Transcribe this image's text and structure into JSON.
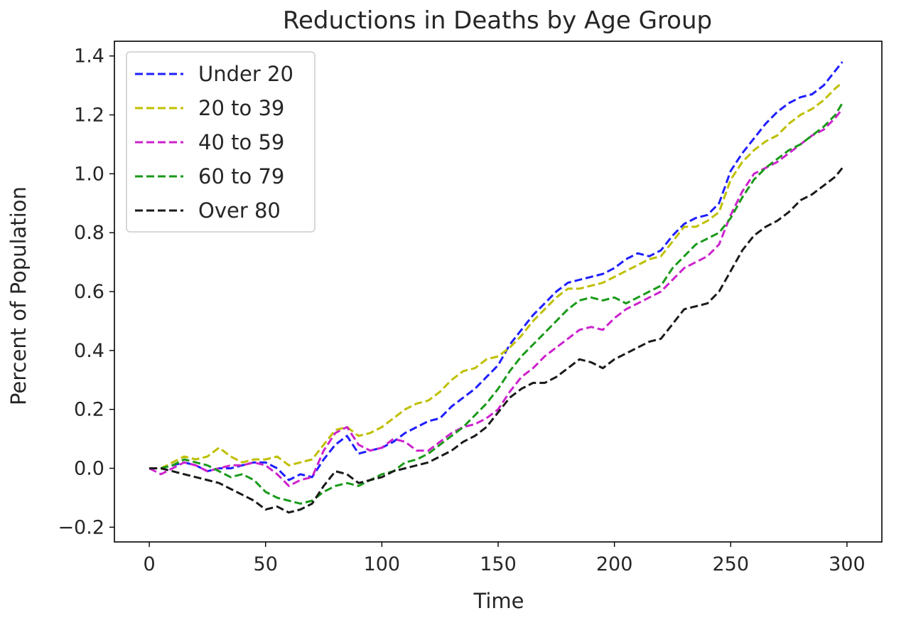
{
  "chart_data": {
    "type": "line",
    "title": "Reductions in Deaths by Age Group",
    "xlabel": "Time",
    "ylabel": "Percent of Population",
    "xlim": [
      -15,
      315
    ],
    "ylim": [
      -0.25,
      1.45
    ],
    "xticks": [
      0,
      50,
      100,
      150,
      200,
      250,
      300
    ],
    "yticks": [
      -0.2,
      0.0,
      0.2,
      0.4,
      0.6,
      0.8,
      1.0,
      1.2,
      1.4
    ],
    "xtick_labels": [
      "0",
      "50",
      "100",
      "150",
      "200",
      "250",
      "300"
    ],
    "ytick_labels": [
      "−0.2",
      "0.0",
      "0.2",
      "0.4",
      "0.6",
      "0.8",
      "1.0",
      "1.2",
      "1.4"
    ],
    "grid": false,
    "legend_position": "upper-left",
    "line_style": "dashed",
    "series": [
      {
        "name": "Under 20",
        "color": "#1f1fff",
        "x": [
          0,
          5,
          10,
          15,
          20,
          25,
          30,
          35,
          40,
          45,
          50,
          55,
          60,
          65,
          70,
          75,
          80,
          85,
          90,
          95,
          100,
          105,
          110,
          115,
          120,
          125,
          130,
          135,
          140,
          145,
          150,
          155,
          160,
          165,
          170,
          175,
          180,
          185,
          190,
          195,
          200,
          205,
          210,
          215,
          220,
          225,
          230,
          235,
          240,
          245,
          250,
          255,
          260,
          265,
          270,
          275,
          280,
          285,
          290,
          295,
          298
        ],
        "y": [
          0.0,
          0.0,
          0.01,
          0.02,
          0.01,
          -0.01,
          0.0,
          0.0,
          0.01,
          0.02,
          0.02,
          0.0,
          -0.04,
          -0.02,
          -0.03,
          0.03,
          0.08,
          0.11,
          0.05,
          0.06,
          0.07,
          0.09,
          0.12,
          0.14,
          0.16,
          0.17,
          0.21,
          0.24,
          0.27,
          0.31,
          0.35,
          0.42,
          0.47,
          0.52,
          0.56,
          0.6,
          0.63,
          0.64,
          0.65,
          0.66,
          0.68,
          0.71,
          0.73,
          0.72,
          0.74,
          0.79,
          0.83,
          0.85,
          0.86,
          0.9,
          1.01,
          1.07,
          1.12,
          1.17,
          1.21,
          1.24,
          1.26,
          1.27,
          1.3,
          1.35,
          1.38
        ]
      },
      {
        "name": "20 to 39",
        "color": "#bfbf00",
        "x": [
          0,
          5,
          10,
          15,
          20,
          25,
          30,
          35,
          40,
          45,
          50,
          55,
          60,
          65,
          70,
          75,
          80,
          85,
          90,
          95,
          100,
          105,
          110,
          115,
          120,
          125,
          130,
          135,
          140,
          145,
          150,
          155,
          160,
          165,
          170,
          175,
          180,
          185,
          190,
          195,
          200,
          205,
          210,
          215,
          220,
          225,
          230,
          235,
          240,
          245,
          250,
          255,
          260,
          265,
          270,
          275,
          280,
          285,
          290,
          295,
          298
        ],
        "y": [
          0.0,
          0.0,
          0.02,
          0.04,
          0.03,
          0.04,
          0.07,
          0.04,
          0.02,
          0.03,
          0.03,
          0.04,
          0.01,
          0.02,
          0.03,
          0.08,
          0.13,
          0.14,
          0.11,
          0.12,
          0.14,
          0.17,
          0.2,
          0.22,
          0.23,
          0.26,
          0.3,
          0.33,
          0.34,
          0.37,
          0.38,
          0.41,
          0.45,
          0.5,
          0.54,
          0.58,
          0.61,
          0.61,
          0.62,
          0.63,
          0.65,
          0.67,
          0.69,
          0.71,
          0.72,
          0.77,
          0.82,
          0.82,
          0.84,
          0.87,
          0.98,
          1.04,
          1.08,
          1.11,
          1.13,
          1.17,
          1.2,
          1.22,
          1.25,
          1.29,
          1.31
        ]
      },
      {
        "name": "40 to 59",
        "color": "#cc22cc",
        "x": [
          0,
          5,
          10,
          15,
          20,
          25,
          30,
          35,
          40,
          45,
          50,
          55,
          60,
          65,
          70,
          75,
          80,
          85,
          90,
          95,
          100,
          105,
          110,
          115,
          120,
          125,
          130,
          135,
          140,
          145,
          150,
          155,
          160,
          165,
          170,
          175,
          180,
          185,
          190,
          195,
          200,
          205,
          210,
          215,
          220,
          225,
          230,
          235,
          240,
          245,
          250,
          255,
          260,
          265,
          270,
          275,
          280,
          285,
          290,
          295,
          298
        ],
        "y": [
          0.0,
          -0.02,
          0.0,
          0.02,
          0.01,
          -0.01,
          0.0,
          0.01,
          0.01,
          0.02,
          0.01,
          -0.02,
          -0.06,
          -0.04,
          -0.03,
          0.06,
          0.12,
          0.14,
          0.08,
          0.06,
          0.07,
          0.1,
          0.09,
          0.06,
          0.06,
          0.09,
          0.12,
          0.14,
          0.15,
          0.17,
          0.2,
          0.26,
          0.31,
          0.34,
          0.38,
          0.41,
          0.44,
          0.47,
          0.48,
          0.47,
          0.51,
          0.54,
          0.56,
          0.58,
          0.6,
          0.64,
          0.68,
          0.7,
          0.72,
          0.76,
          0.86,
          0.94,
          1.0,
          1.02,
          1.04,
          1.07,
          1.1,
          1.13,
          1.15,
          1.19,
          1.22
        ]
      },
      {
        "name": "60 to 79",
        "color": "#1a9a1a",
        "x": [
          0,
          5,
          10,
          15,
          20,
          25,
          30,
          35,
          40,
          45,
          50,
          55,
          60,
          65,
          70,
          75,
          80,
          85,
          90,
          95,
          100,
          105,
          110,
          115,
          120,
          125,
          130,
          135,
          140,
          145,
          150,
          155,
          160,
          165,
          170,
          175,
          180,
          185,
          190,
          195,
          200,
          205,
          210,
          215,
          220,
          225,
          230,
          235,
          240,
          245,
          250,
          255,
          260,
          265,
          270,
          275,
          280,
          285,
          290,
          295,
          298
        ],
        "y": [
          0.0,
          0.0,
          0.01,
          0.03,
          0.02,
          0.01,
          -0.01,
          -0.03,
          -0.02,
          -0.04,
          -0.08,
          -0.1,
          -0.11,
          -0.12,
          -0.11,
          -0.08,
          -0.06,
          -0.05,
          -0.06,
          -0.04,
          -0.02,
          -0.01,
          0.02,
          0.03,
          0.05,
          0.08,
          0.11,
          0.14,
          0.18,
          0.22,
          0.27,
          0.33,
          0.38,
          0.42,
          0.46,
          0.5,
          0.54,
          0.57,
          0.58,
          0.57,
          0.58,
          0.56,
          0.58,
          0.6,
          0.62,
          0.68,
          0.72,
          0.76,
          0.78,
          0.8,
          0.85,
          0.92,
          0.98,
          1.02,
          1.05,
          1.08,
          1.1,
          1.13,
          1.16,
          1.2,
          1.24
        ]
      },
      {
        "name": "Over 80",
        "color": "#1a1a1a",
        "x": [
          0,
          5,
          10,
          15,
          20,
          25,
          30,
          35,
          40,
          45,
          50,
          55,
          60,
          65,
          70,
          75,
          80,
          85,
          90,
          95,
          100,
          105,
          110,
          115,
          120,
          125,
          130,
          135,
          140,
          145,
          150,
          155,
          160,
          165,
          170,
          175,
          180,
          185,
          190,
          195,
          200,
          205,
          210,
          215,
          220,
          225,
          230,
          235,
          240,
          245,
          250,
          255,
          260,
          265,
          270,
          275,
          280,
          285,
          290,
          295,
          298
        ],
        "y": [
          0.0,
          0.0,
          -0.01,
          -0.02,
          -0.03,
          -0.04,
          -0.05,
          -0.07,
          -0.09,
          -0.11,
          -0.14,
          -0.13,
          -0.15,
          -0.14,
          -0.12,
          -0.06,
          -0.01,
          -0.02,
          -0.05,
          -0.04,
          -0.03,
          -0.01,
          0.0,
          0.01,
          0.02,
          0.04,
          0.06,
          0.09,
          0.11,
          0.14,
          0.19,
          0.24,
          0.27,
          0.29,
          0.29,
          0.31,
          0.34,
          0.37,
          0.36,
          0.34,
          0.37,
          0.39,
          0.41,
          0.43,
          0.44,
          0.49,
          0.54,
          0.55,
          0.56,
          0.6,
          0.67,
          0.74,
          0.79,
          0.82,
          0.84,
          0.87,
          0.91,
          0.93,
          0.96,
          0.99,
          1.02
        ]
      }
    ]
  }
}
